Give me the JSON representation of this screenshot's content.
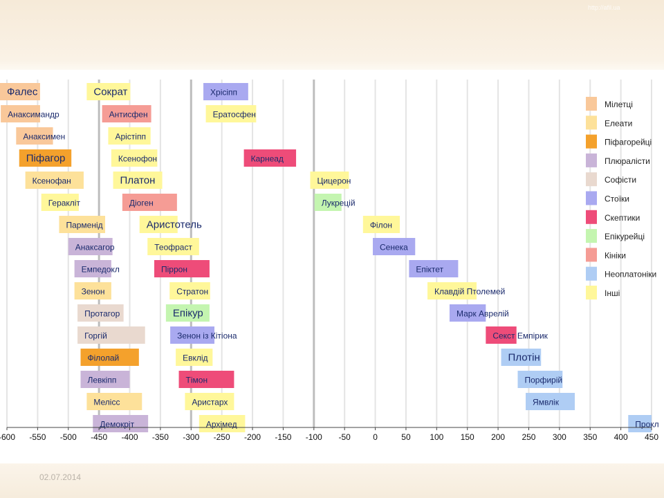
{
  "footer": {
    "date": "02.07.2014"
  },
  "watermark": "http://afil.ua",
  "chart_data": {
    "type": "bar",
    "orientation": "horizontal",
    "title": "",
    "xlabel": "",
    "ylabel": "",
    "xlim": [
      -600,
      450
    ],
    "x_ticks": [
      -600,
      -550,
      -500,
      -450,
      -400,
      -350,
      -300,
      -250,
      -200,
      -150,
      -100,
      -50,
      0,
      50,
      100,
      150,
      200,
      250,
      300,
      350,
      400,
      450
    ],
    "grid": true,
    "legend_position": "right",
    "legend": [
      {
        "label": "Мілетці",
        "color": "#f9c89a"
      },
      {
        "label": "Елеати",
        "color": "#fde19a"
      },
      {
        "label": "Піфагорейці",
        "color": "#f4a12c"
      },
      {
        "label": "Плюралісти",
        "color": "#c9b4d8"
      },
      {
        "label": "Софісти",
        "color": "#e9d9cf"
      },
      {
        "label": "Стоїки",
        "color": "#a9a9f0"
      },
      {
        "label": "Скептики",
        "color": "#ee4c79"
      },
      {
        "label": "Епікурейці",
        "color": "#c4f5b0"
      },
      {
        "label": "Кініки",
        "color": "#f59c95"
      },
      {
        "label": "Неоплатоніки",
        "color": "#afcdf4"
      },
      {
        "label": "Інші",
        "color": "#fff79a"
      }
    ],
    "columns": [
      {
        "bars": [
          {
            "label": "Фалес",
            "start": -624,
            "end": -546,
            "school": "Мілетці",
            "big": true
          },
          {
            "label": "Анаксимандр",
            "start": -610,
            "end": -546,
            "school": "Мілетці"
          },
          {
            "label": "Анаксимен",
            "start": -585,
            "end": -525,
            "school": "Мілетці"
          },
          {
            "label": "Піфагор",
            "start": -580,
            "end": -495,
            "school": "Піфагорейці",
            "big": true
          },
          {
            "label": "Ксенофан",
            "start": -570,
            "end": -475,
            "school": "Елеати"
          },
          {
            "label": "Геракліт",
            "start": -544,
            "end": -483,
            "school": "Інші"
          },
          {
            "label": "Парменід",
            "start": -515,
            "end": -440,
            "school": "Елеати"
          },
          {
            "label": "Анаксагор",
            "start": -500,
            "end": -428,
            "school": "Плюралісти"
          },
          {
            "label": "Емпедокл",
            "start": -490,
            "end": -430,
            "school": "Плюралісти"
          },
          {
            "label": "Зенон",
            "start": -490,
            "end": -430,
            "school": "Елеати"
          },
          {
            "label": "Протагор",
            "start": -485,
            "end": -410,
            "school": "Софісти"
          },
          {
            "label": "Горгій",
            "start": -485,
            "end": -375,
            "school": "Софісти"
          },
          {
            "label": "Філолай",
            "start": -480,
            "end": -385,
            "school": "Піфагорейці"
          },
          {
            "label": "Левкіпп",
            "start": -480,
            "end": -400,
            "school": "Плюралісти"
          },
          {
            "label": "Мелісс",
            "start": -470,
            "end": -380,
            "school": "Елеати"
          },
          {
            "label": "Демокріт",
            "start": -460,
            "end": -370,
            "school": "Плюралісти"
          }
        ]
      },
      {
        "bars": [
          {
            "label": "Сократ",
            "start": -470,
            "end": -399,
            "school": "Інші",
            "big": true
          },
          {
            "label": "Антисфен",
            "start": -445,
            "end": -365,
            "school": "Кініки"
          },
          {
            "label": "Арістіпп",
            "start": -435,
            "end": -366,
            "school": "Інші"
          },
          {
            "label": "Ксенофон",
            "start": -430,
            "end": -355,
            "school": "Інші"
          },
          {
            "label": "Платон",
            "start": -427,
            "end": -347,
            "school": "Інші",
            "big": true
          },
          {
            "label": "Діоген",
            "start": -412,
            "end": -323,
            "school": "Кініки"
          },
          {
            "label": "Аристотель",
            "start": -384,
            "end": -322,
            "school": "Інші",
            "big": true
          },
          {
            "label": "Теофраст",
            "start": -371,
            "end": -287,
            "school": "Інші"
          },
          {
            "label": "Піррон",
            "start": -360,
            "end": -270,
            "school": "Скептики"
          },
          {
            "label": "Стратон",
            "start": -335,
            "end": -269,
            "school": "Інші"
          },
          {
            "label": "Епікур",
            "start": -341,
            "end": -270,
            "school": "Епікурейці",
            "big": true
          },
          {
            "label": "Зенон із Кітіона",
            "start": -334,
            "end": -262,
            "school": "Стоїки"
          },
          {
            "label": "Евклід",
            "start": -325,
            "end": -265,
            "school": "Інші"
          },
          {
            "label": "Тімон",
            "start": -320,
            "end": -230,
            "school": "Скептики"
          },
          {
            "label": "Аристарх",
            "start": -310,
            "end": -230,
            "school": "Інші"
          },
          {
            "label": "Архімед",
            "start": -287,
            "end": -212,
            "school": "Інші"
          }
        ]
      },
      {
        "bars": [
          {
            "label": "Хрісіпп",
            "start": -280,
            "end": -207,
            "school": "Стоїки"
          },
          {
            "label": "Ератосфен",
            "start": -276,
            "end": -194,
            "school": "Інші"
          },
          {
            "label": "Карнеад",
            "start": -214,
            "end": -129,
            "school": "Скептики"
          },
          {
            "label": "Цицерон",
            "start": -106,
            "end": -43,
            "school": "Інші"
          },
          {
            "label": "Лукрецій",
            "start": -99,
            "end": -55,
            "school": "Епікурейці"
          },
          {
            "label": "Філон",
            "start": -20,
            "end": 40,
            "school": "Інші"
          },
          {
            "label": "Сенека",
            "start": -4,
            "end": 65,
            "school": "Стоїки"
          },
          {
            "label": "Епіктет",
            "start": 55,
            "end": 135,
            "school": "Стоїки"
          },
          {
            "label": "Клавдій Птолемей",
            "start": 85,
            "end": 165,
            "school": "Інші"
          },
          {
            "label": "Марк Аврелій",
            "start": 121,
            "end": 180,
            "school": "Стоїки"
          },
          {
            "label": "Секст Емпірик",
            "start": 180,
            "end": 230,
            "school": "Скептики"
          },
          {
            "label": "Плотін",
            "start": 205,
            "end": 270,
            "school": "Неоплатоніки",
            "big": true
          },
          {
            "label": "Порфирій",
            "start": 232,
            "end": 305,
            "school": "Неоплатоніки"
          },
          {
            "label": "Ямвлік",
            "start": 245,
            "end": 325,
            "school": "Неоплатоніки"
          },
          {
            "label": "Прокл",
            "start": 412,
            "end": 485,
            "school": "Неоплатоніки"
          }
        ],
        "row_map": [
          0,
          1,
          3,
          4,
          5,
          6,
          7,
          8,
          9,
          10,
          11,
          12,
          13,
          14,
          15
        ]
      }
    ]
  }
}
